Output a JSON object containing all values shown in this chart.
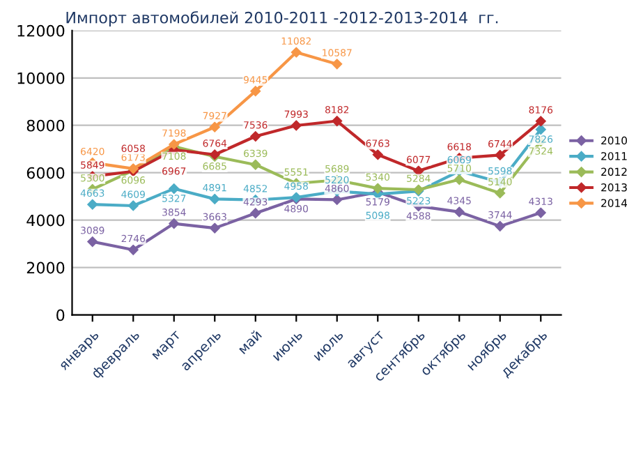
{
  "chart_data": {
    "type": "line",
    "title": "Импорт автомобилей 2010-2011 -2012-2013-2014  гг.",
    "categories": [
      "январь",
      "февраль",
      "март",
      "апрель",
      "май",
      "июнь",
      "июль",
      "август",
      "сентябрь",
      "октябрь",
      "ноябрь",
      "декабрь"
    ],
    "series": [
      {
        "name": "2010",
        "color": "#7b62a3",
        "values": [
          3089,
          2746,
          3854,
          3663,
          4293,
          4890,
          4860,
          5179,
          4588,
          4345,
          3744,
          4313
        ]
      },
      {
        "name": "2011",
        "color": "#4bacc6",
        "values": [
          4663,
          4609,
          5327,
          4891,
          4852,
          4958,
          5220,
          5098,
          5223,
          6069,
          5598,
          7826
        ]
      },
      {
        "name": "2012",
        "color": "#9bbb59",
        "values": [
          5300,
          6096,
          7108,
          6685,
          6339,
          5551,
          5689,
          5340,
          5284,
          5710,
          5140,
          7324
        ]
      },
      {
        "name": "2013",
        "color": "#c0282a",
        "values": [
          5849,
          6058,
          6967,
          6764,
          7536,
          7993,
          8182,
          6763,
          6077,
          6618,
          6744,
          8176
        ]
      },
      {
        "name": "2014",
        "color": "#f79646",
        "values": [
          6420,
          6173,
          7198,
          7927,
          9445,
          11082,
          10587,
          null,
          null,
          null,
          null,
          null
        ]
      }
    ],
    "ylim": [
      0,
      12000
    ],
    "yticks": [
      0,
      2000,
      4000,
      6000,
      8000,
      10000,
      12000
    ],
    "grid": "y",
    "legend": "right",
    "marker": "diamond",
    "line_style": "solid",
    "data_labels": true
  }
}
